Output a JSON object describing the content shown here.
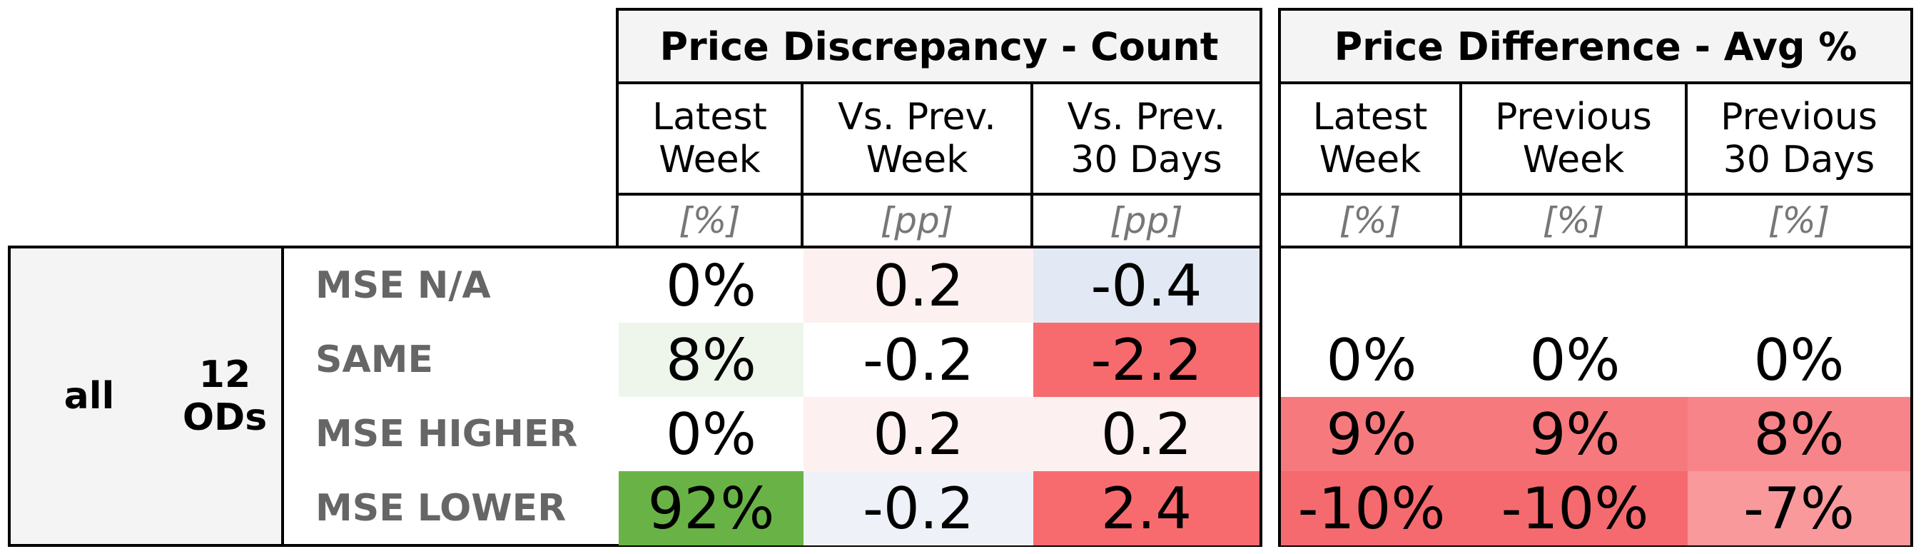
{
  "chart_data": {
    "type": "table",
    "groups": [
      {
        "title": "Price Discrepancy - Count",
        "columns": [
          {
            "label": "Latest Week",
            "unit": "[%]"
          },
          {
            "label": "Vs. Prev. Week",
            "unit": "[pp]"
          },
          {
            "label": "Vs. Prev. 30 Days",
            "unit": "[pp]"
          }
        ]
      },
      {
        "title": "Price Difference - Avg %",
        "columns": [
          {
            "label": "Latest Week",
            "unit": "[%]"
          },
          {
            "label": "Previous Week",
            "unit": "[%]"
          },
          {
            "label": "Previous 30 Days",
            "unit": "[%]"
          }
        ]
      }
    ],
    "row_group": {
      "segment": "all",
      "count_label": "12 ODs"
    },
    "rows": [
      {
        "label": "MSE N/A",
        "count": [
          "0%",
          "0.2",
          "-0.4"
        ],
        "avg": [
          "",
          "",
          ""
        ]
      },
      {
        "label": "SAME",
        "count": [
          "8%",
          "-0.2",
          "-2.2"
        ],
        "avg": [
          "0%",
          "0%",
          "0%"
        ]
      },
      {
        "label": "MSE HIGHER",
        "count": [
          "0%",
          "0.2",
          "0.2"
        ],
        "avg": [
          "9%",
          "9%",
          "8%"
        ]
      },
      {
        "label": "MSE LOWER",
        "count": [
          "92%",
          "-0.2",
          "2.4"
        ],
        "avg": [
          "-10%",
          "-10%",
          "-7%"
        ]
      }
    ],
    "cell_colors": {
      "count": [
        [
          "#ffffff",
          "#fdf0f0",
          "#e3e9f4"
        ],
        [
          "#eef6ec",
          "#ffffff",
          "#f76b6f"
        ],
        [
          "#ffffff",
          "#fdf0f0",
          "#fdf0f0"
        ],
        [
          "#69b346",
          "#eef2f8",
          "#f76b6f"
        ]
      ],
      "avg": [
        [
          "#ffffff",
          "#ffffff",
          "#ffffff"
        ],
        [
          "#ffffff",
          "#ffffff",
          "#ffffff"
        ],
        [
          "#f67a7d",
          "#f67a7d",
          "#f78488"
        ],
        [
          "#f56a6e",
          "#f56a6e",
          "#f9999c"
        ]
      ]
    }
  }
}
